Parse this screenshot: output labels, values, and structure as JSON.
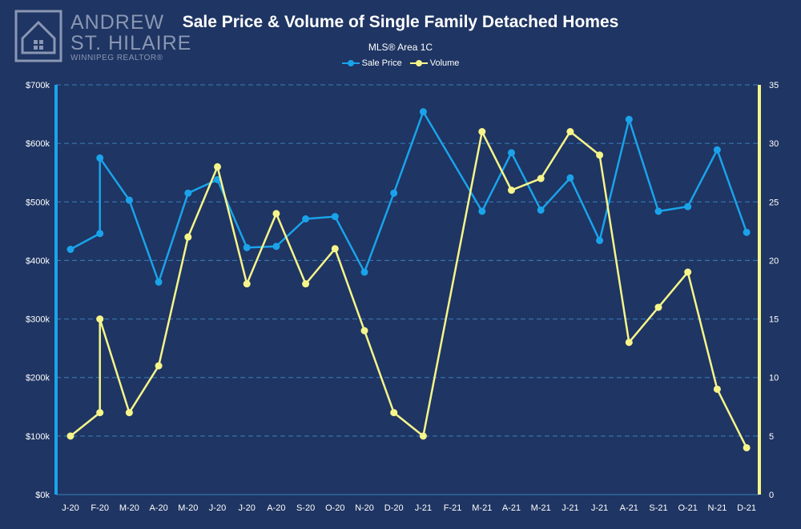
{
  "logo": {
    "line1": "ANDREW",
    "line2": "ST. HILAIRE",
    "line3": "WINNIPEG REALTOR®"
  },
  "colors": {
    "background": "#1f3563",
    "sale_price": "#1aa3ea",
    "volume": "#f6f58a",
    "grid": "#3a7fc0",
    "axis_text": "#ffffff"
  },
  "chart_data": {
    "type": "line",
    "title": "Sale Price & Volume of Single Family Detached Homes",
    "subtitle": "MLS® Area 1C",
    "legend_position": "top-center",
    "grid": true,
    "categories": [
      "J-20",
      "F-20",
      "F-20",
      "M-20",
      "A-20",
      "M-20",
      "J-20",
      "J-20",
      "A-20",
      "S-20",
      "O-20",
      "N-20",
      "D-20",
      "J-21",
      "F-21",
      "M-21",
      "A-21",
      "M-21",
      "J-21",
      "J-21",
      "A-21",
      "S-21",
      "O-21",
      "N-21",
      "D-21"
    ],
    "x_positions": [
      0,
      1,
      1,
      2,
      3,
      4,
      5,
      6,
      7,
      8,
      9,
      10,
      11,
      12,
      13,
      14,
      15,
      16,
      17,
      18,
      19,
      20,
      21,
      22,
      23
    ],
    "x_tick_labels": [
      "J-20",
      "F-20",
      "M-20",
      "A-20",
      "M-20",
      "J-20",
      "J-20",
      "A-20",
      "S-20",
      "O-20",
      "N-20",
      "D-20",
      "J-21",
      "F-21",
      "M-21",
      "A-21",
      "M-21",
      "J-21",
      "J-21",
      "A-21",
      "S-21",
      "O-21",
      "N-21",
      "D-21"
    ],
    "y_left": {
      "min": 0,
      "max": 700000,
      "step": 100000,
      "tick_labels": [
        "$0k",
        "$100k",
        "$200k",
        "$300k",
        "$400k",
        "$500k",
        "$600k",
        "$700k"
      ]
    },
    "y_right": {
      "min": 0,
      "max": 35,
      "step": 5,
      "tick_labels": [
        "0",
        "5",
        "10",
        "15",
        "20",
        "25",
        "30",
        "35"
      ]
    },
    "series": [
      {
        "name": "Sale Price",
        "axis": "left",
        "values": [
          419000,
          446000,
          575000,
          503000,
          363000,
          515000,
          538000,
          422000,
          424000,
          471000,
          475000,
          380000,
          515000,
          654000,
          null,
          484000,
          584000,
          486000,
          541000,
          434000,
          641000,
          484000,
          492000,
          589000,
          448000
        ]
      },
      {
        "name": "Volume",
        "axis": "right",
        "values": [
          5,
          7,
          15,
          7,
          11,
          22,
          28,
          18,
          24,
          18,
          21,
          14,
          7,
          5,
          null,
          31,
          26,
          27,
          31,
          29,
          13,
          16,
          19,
          9,
          4
        ]
      }
    ]
  }
}
